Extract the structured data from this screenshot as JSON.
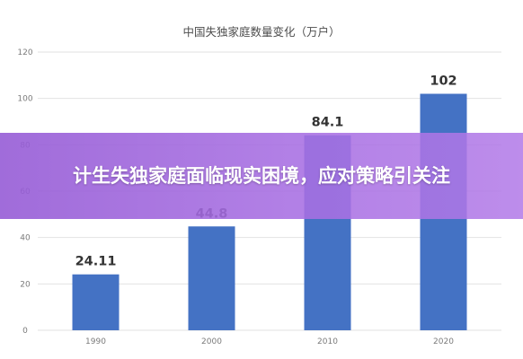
{
  "chart_data": {
    "type": "bar",
    "title": "中国失独家庭数量变化（万户）",
    "categories": [
      "1990",
      "2000",
      "2010",
      "2020"
    ],
    "values": [
      24.11,
      44.8,
      84.1,
      102
    ],
    "value_labels": [
      "24.11",
      "44.8",
      "84.1",
      "102"
    ],
    "ylim": [
      0,
      120
    ],
    "yticks": [
      "0",
      "20",
      "40",
      "60",
      "80",
      "100",
      "120"
    ],
    "grid": true,
    "bar_color": "#4472c4"
  },
  "overlay": {
    "headline": "计生失独家庭面临现实困境，应对策略引关注",
    "color": "#9b5fd9"
  }
}
